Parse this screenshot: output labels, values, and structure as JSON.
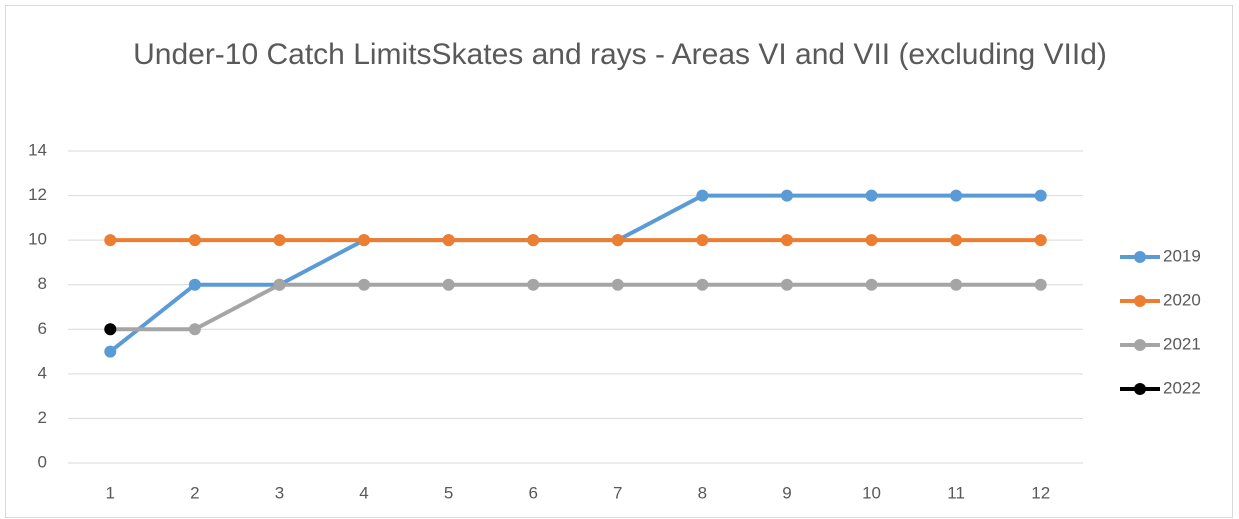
{
  "chart_data": {
    "type": "line",
    "title": "Under-10 Catch LimitsSkates and rays - Areas VI and VII (excluding VIId)",
    "categories": [
      1,
      2,
      3,
      4,
      5,
      6,
      7,
      8,
      9,
      10,
      11,
      12
    ],
    "series": [
      {
        "name": "2019",
        "color": "#5b9bd5",
        "values": [
          5,
          8,
          8,
          10,
          10,
          10,
          10,
          12,
          12,
          12,
          12,
          12
        ]
      },
      {
        "name": "2020",
        "color": "#ed7d31",
        "values": [
          10,
          10,
          10,
          10,
          10,
          10,
          10,
          10,
          10,
          10,
          10,
          10
        ]
      },
      {
        "name": "2021",
        "color": "#a5a5a5",
        "values": [
          6,
          6,
          8,
          8,
          8,
          8,
          8,
          8,
          8,
          8,
          8,
          8
        ]
      },
      {
        "name": "2022",
        "color": "#000000",
        "values": [
          6,
          null,
          null,
          null,
          null,
          null,
          null,
          null,
          null,
          null,
          null,
          null
        ]
      }
    ],
    "ylim": [
      0,
      14
    ],
    "yticks": [
      0,
      2,
      4,
      6,
      8,
      10,
      12,
      14
    ],
    "grid": true,
    "legend": "right"
  }
}
